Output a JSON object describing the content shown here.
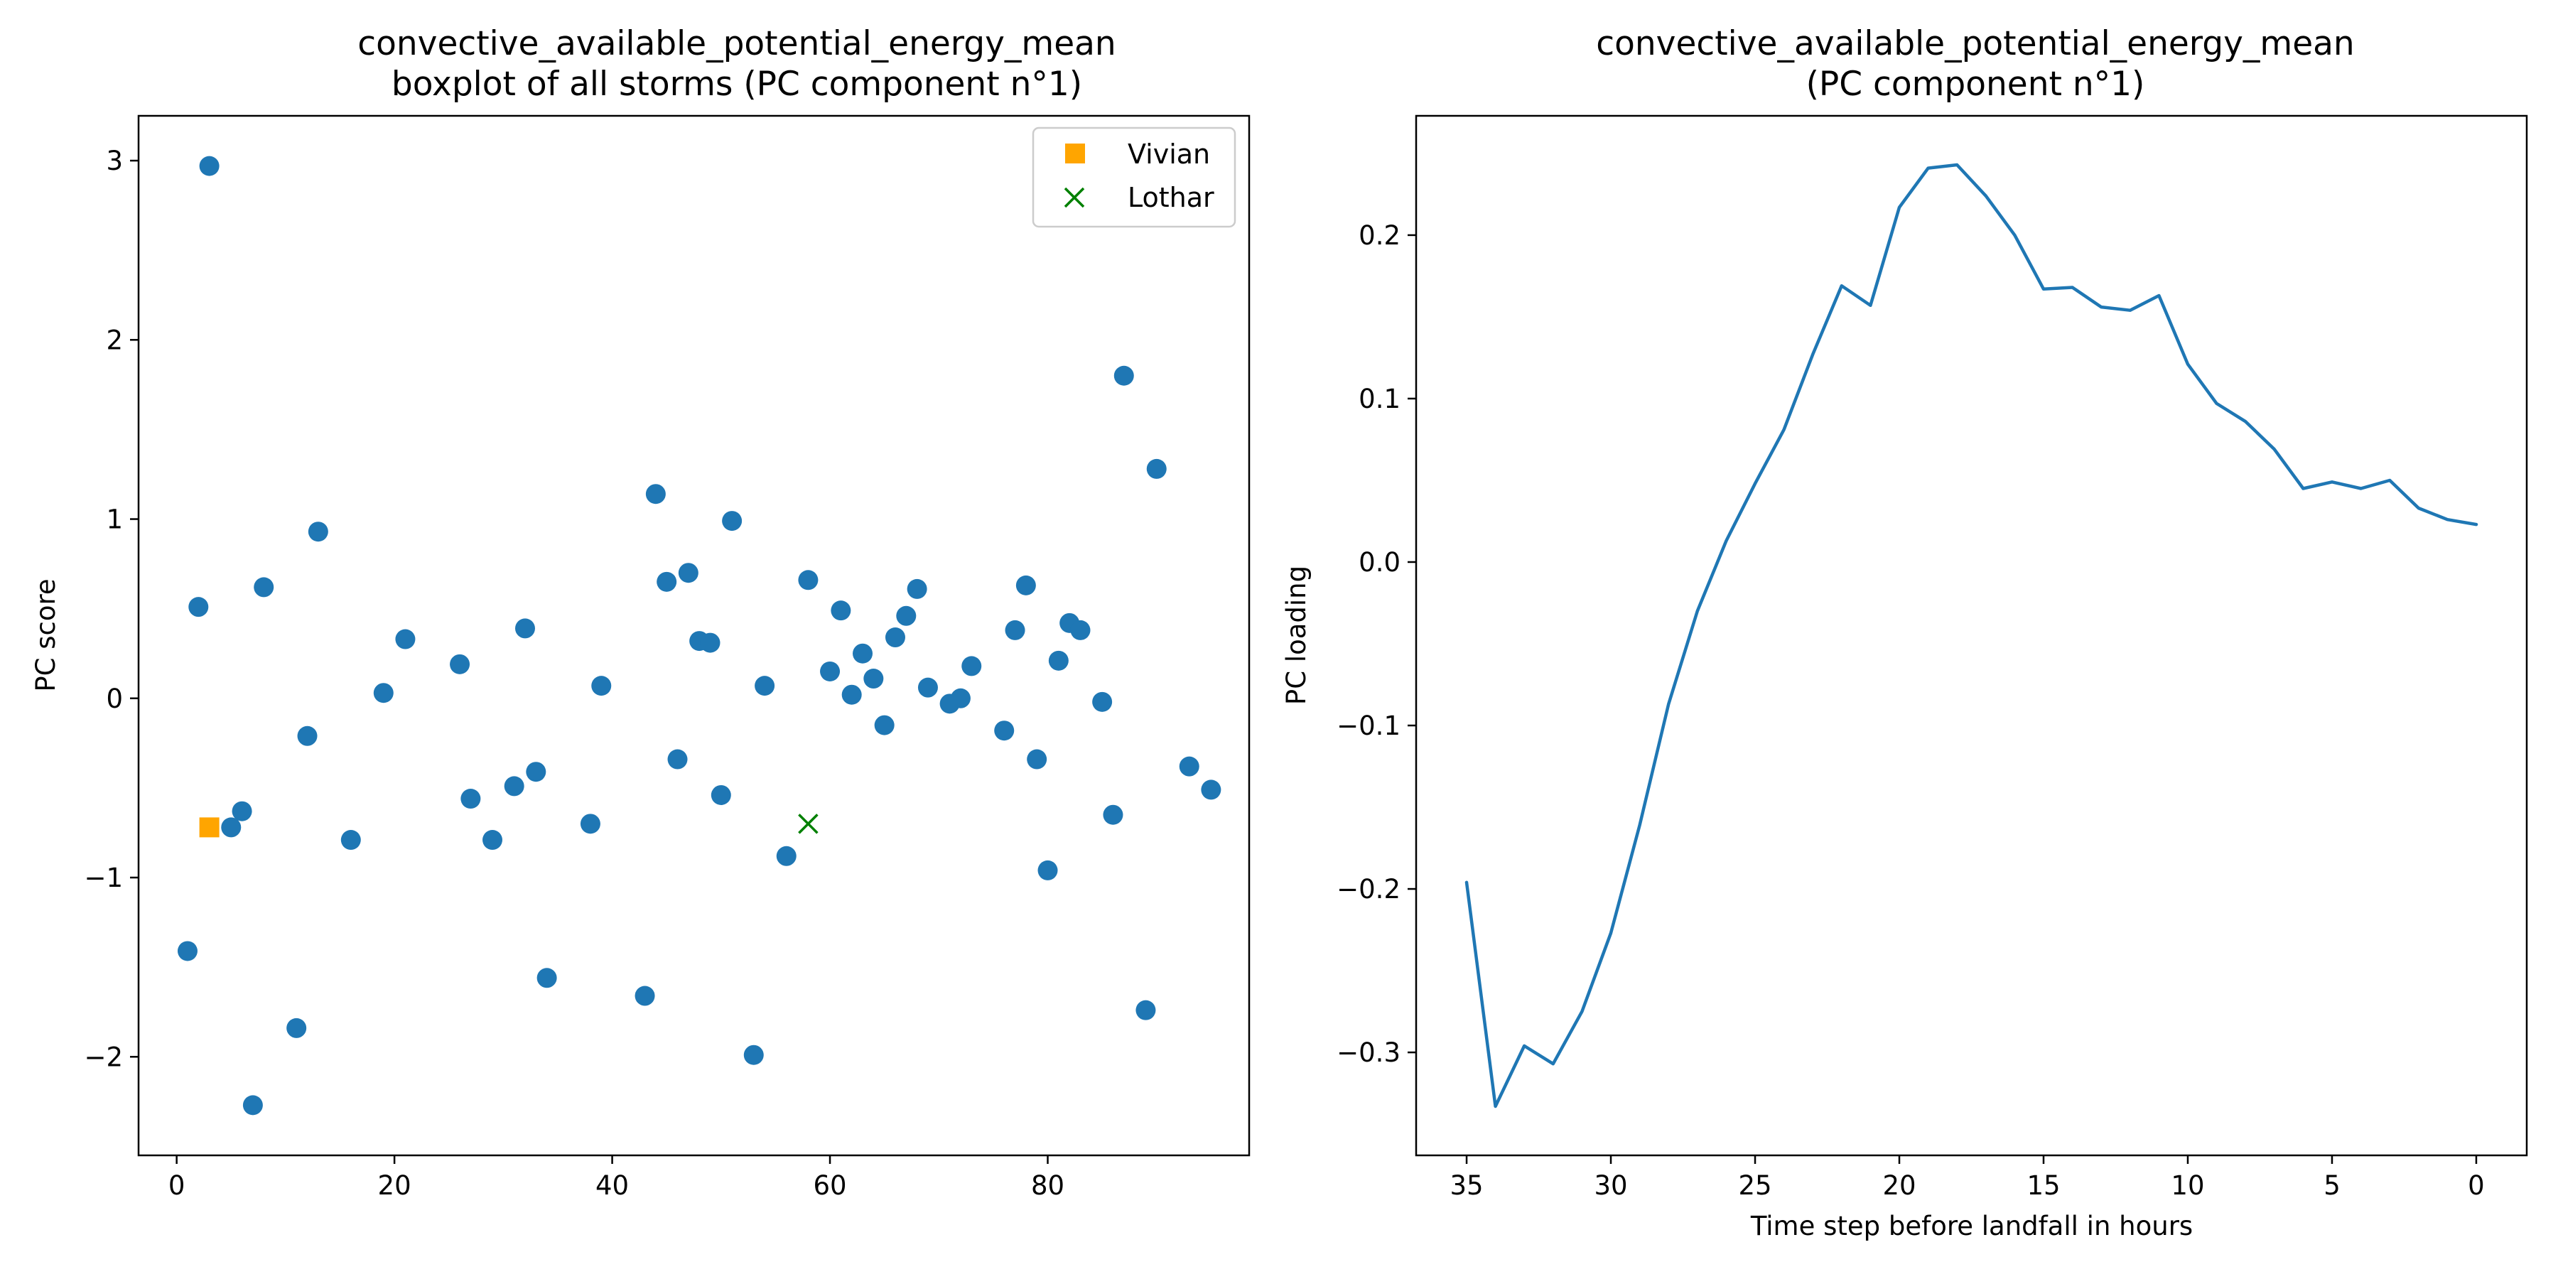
{
  "chart_data": [
    {
      "type": "scatter",
      "title": [
        "convective_available_potential_energy_mean",
        "boxplot of all storms (PC component n°1)"
      ],
      "xlabel": "",
      "ylabel": "PC score",
      "xlim": [
        -3.5,
        98.5
      ],
      "ylim": [
        -2.55,
        3.25
      ],
      "xticks": [
        0,
        20,
        40,
        60,
        80
      ],
      "yticks": [
        -2,
        -1,
        0,
        1,
        2,
        3
      ],
      "legend": "top-right",
      "grid": false,
      "series": [
        {
          "name": "",
          "color": "#1f77b4",
          "marker": "circle",
          "points": [
            [
              1,
              -1.41
            ],
            [
              2,
              0.51
            ],
            [
              3,
              2.97
            ],
            [
              5,
              -0.72
            ],
            [
              6,
              -0.63
            ],
            [
              7,
              -2.27
            ],
            [
              8,
              0.62
            ],
            [
              11,
              -1.84
            ],
            [
              12,
              -0.21
            ],
            [
              13,
              0.93
            ],
            [
              16,
              -0.79
            ],
            [
              19,
              0.03
            ],
            [
              21,
              0.33
            ],
            [
              26,
              0.19
            ],
            [
              27,
              -0.56
            ],
            [
              29,
              -0.79
            ],
            [
              31,
              -0.49
            ],
            [
              32,
              0.39
            ],
            [
              33,
              -0.41
            ],
            [
              34,
              -1.56
            ],
            [
              38,
              -0.7
            ],
            [
              39,
              0.07
            ],
            [
              43,
              -1.66
            ],
            [
              44,
              1.14
            ],
            [
              45,
              0.65
            ],
            [
              46,
              -0.34
            ],
            [
              47,
              0.7
            ],
            [
              48,
              0.32
            ],
            [
              49,
              0.31
            ],
            [
              50,
              -0.54
            ],
            [
              51,
              0.99
            ],
            [
              53,
              -1.99
            ],
            [
              54,
              0.07
            ],
            [
              56,
              -0.88
            ],
            [
              58,
              0.66
            ],
            [
              60,
              0.15
            ],
            [
              61,
              0.49
            ],
            [
              62,
              0.02
            ],
            [
              63,
              0.25
            ],
            [
              64,
              0.11
            ],
            [
              65,
              -0.15
            ],
            [
              66,
              0.34
            ],
            [
              67,
              0.46
            ],
            [
              68,
              0.61
            ],
            [
              69,
              0.06
            ],
            [
              71,
              -0.03
            ],
            [
              72,
              0.0
            ],
            [
              73,
              0.18
            ],
            [
              76,
              -0.18
            ],
            [
              77,
              0.38
            ],
            [
              78,
              0.63
            ],
            [
              79,
              -0.34
            ],
            [
              80,
              -0.96
            ],
            [
              81,
              0.21
            ],
            [
              82,
              0.42
            ],
            [
              83,
              0.38
            ],
            [
              85,
              -0.02
            ],
            [
              86,
              -0.65
            ],
            [
              87,
              1.8
            ],
            [
              89,
              -1.74
            ],
            [
              90,
              1.28
            ],
            [
              93,
              -0.38
            ],
            [
              95,
              -0.51
            ]
          ]
        },
        {
          "name": "Vivian",
          "color": "#ffa500",
          "marker": "square",
          "points": [
            [
              3,
              -0.72
            ]
          ]
        },
        {
          "name": "Lothar",
          "color": "#008000",
          "marker": "x",
          "points": [
            [
              58,
              -0.7
            ]
          ]
        }
      ]
    },
    {
      "type": "line",
      "title": [
        "convective_available_potential_energy_mean",
        "(PC component n°1)"
      ],
      "xlabel": "Time step before landfall in hours",
      "ylabel": "PC loading",
      "xlim": [
        36.75,
        -1.75
      ],
      "ylim": [
        -0.363,
        0.273
      ],
      "xticks": [
        35,
        30,
        25,
        20,
        15,
        10,
        5,
        0
      ],
      "yticks": [
        -0.3,
        -0.2,
        -0.1,
        0.0,
        0.1,
        0.2
      ],
      "ytick_labels": [
        "−0.3",
        "−0.2",
        "−0.1",
        "0.0",
        "0.1",
        "0.2"
      ],
      "grid": false,
      "series": [
        {
          "name": "",
          "color": "#1f77b4",
          "x": [
            35,
            34,
            33,
            32,
            31,
            30,
            29,
            28,
            27,
            26,
            25,
            24,
            23,
            22,
            21,
            20,
            19,
            18,
            17,
            16,
            15,
            14,
            13,
            12,
            11,
            10,
            9,
            8,
            7,
            6,
            5,
            4,
            3,
            2,
            1,
            0
          ],
          "y": [
            -0.196,
            -0.333,
            -0.296,
            -0.307,
            -0.275,
            -0.227,
            -0.161,
            -0.087,
            -0.03,
            0.013,
            0.048,
            0.081,
            0.127,
            0.169,
            0.157,
            0.217,
            0.241,
            0.243,
            0.224,
            0.2,
            0.167,
            0.168,
            0.156,
            0.154,
            0.163,
            0.121,
            0.097,
            0.086,
            0.069,
            0.045,
            0.049,
            0.045,
            0.05,
            0.033,
            0.026,
            0.023
          ]
        }
      ]
    }
  ]
}
